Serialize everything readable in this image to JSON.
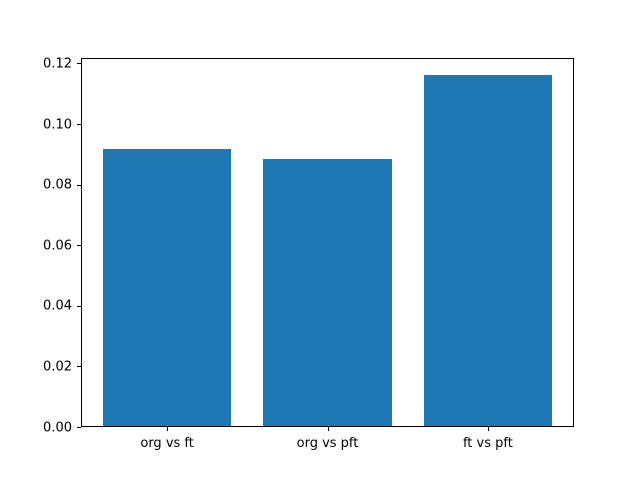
{
  "chart_data": {
    "type": "bar",
    "categories": [
      "org vs ft",
      "org vs pft",
      "ft vs pft"
    ],
    "values": [
      0.0915,
      0.088,
      0.116
    ],
    "title": "",
    "xlabel": "",
    "ylabel": "",
    "ylim": [
      0,
      0.1218
    ],
    "xlim": [
      -0.537,
      2.537
    ],
    "bar_width": 0.8,
    "yticks": [
      0.0,
      0.02,
      0.04,
      0.06,
      0.08,
      0.1,
      0.12
    ],
    "ytick_labels": [
      "0.00",
      "0.02",
      "0.04",
      "0.06",
      "0.08",
      "0.10",
      "0.12"
    ],
    "bar_color": "#1f77b4",
    "spine_color": "#000000",
    "background_color": "#ffffff",
    "grid": false,
    "legend": null
  }
}
